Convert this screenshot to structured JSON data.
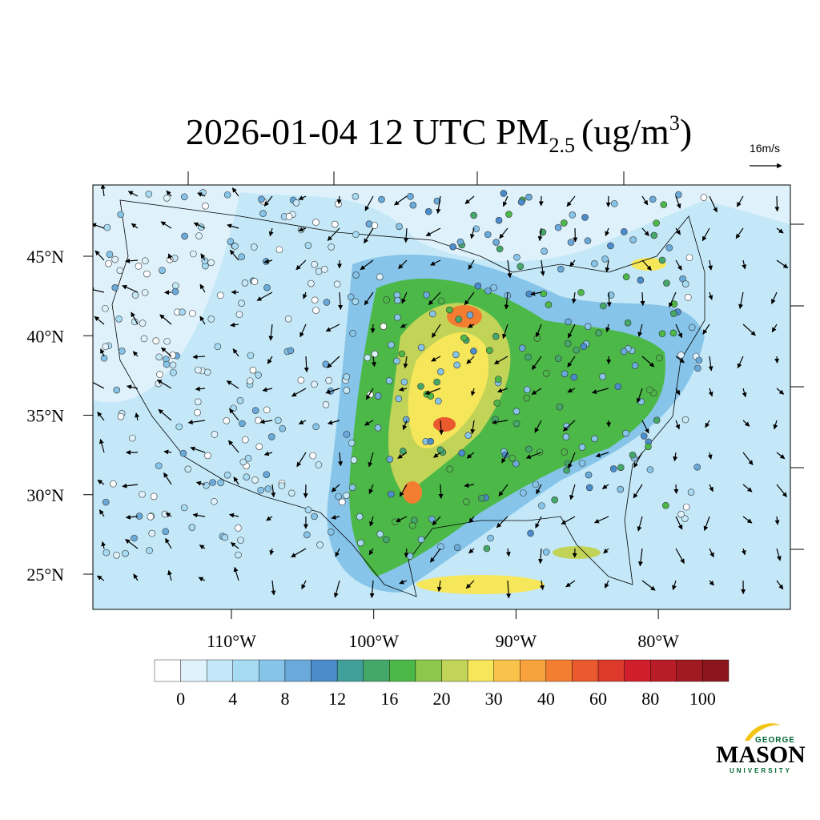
{
  "title": {
    "main": "2026-01-04 12 UTC PM",
    "sub": "2.5",
    "unit": "(ug/m",
    "sup": "3",
    "close": ")"
  },
  "vector_label": "16m/s",
  "latitudes": [
    {
      "value": 45,
      "label": "45°N"
    },
    {
      "value": 40,
      "label": "40°N"
    },
    {
      "value": 35,
      "label": "35°N"
    },
    {
      "value": 30,
      "label": "30°N"
    },
    {
      "value": 25,
      "label": "25°N"
    }
  ],
  "longitudes": [
    {
      "value": -110,
      "label": "110°W"
    },
    {
      "value": -100,
      "label": "100°W"
    },
    {
      "value": -90,
      "label": "90°W"
    },
    {
      "value": -80,
      "label": "80°W"
    }
  ],
  "colorbar": {
    "colors": [
      "#ffffff",
      "#dff2fb",
      "#c4e8f7",
      "#a6dbf3",
      "#86c4e9",
      "#6aaadb",
      "#4a8ccc",
      "#41a099",
      "#44a86a",
      "#4cb848",
      "#8cc84c",
      "#c2d458",
      "#f6e65a",
      "#f9c24a",
      "#f8a23e",
      "#f37e32",
      "#ea5a2e",
      "#dd3a2c",
      "#d01f2b",
      "#b81c26",
      "#a01a22",
      "#8a161b"
    ],
    "ticks": [
      0,
      4,
      8,
      12,
      16,
      20,
      30,
      40,
      60,
      80,
      100
    ]
  },
  "logo": {
    "top": "GEORGE",
    "name": "MASON",
    "bottom": "UNIVERSITY"
  }
}
